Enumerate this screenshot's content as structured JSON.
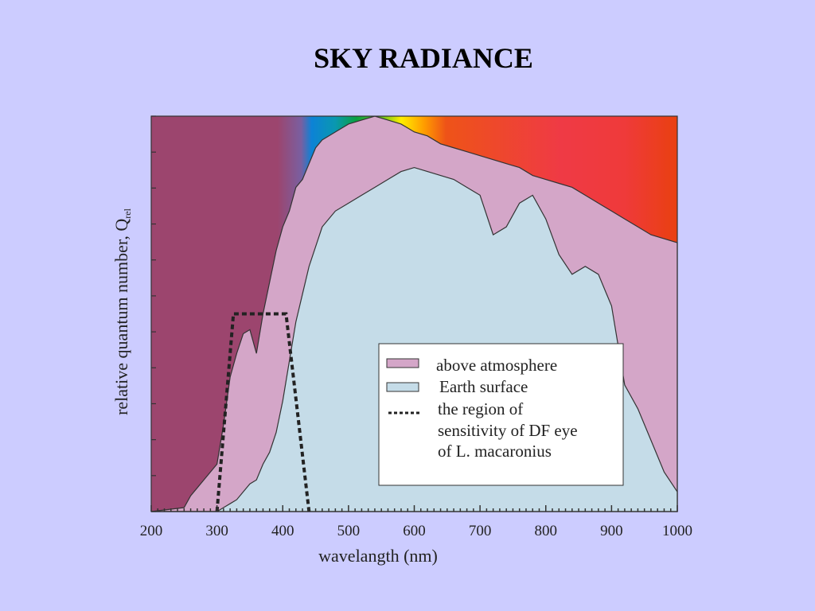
{
  "chart_data": {
    "type": "area",
    "title": "SKY RADIANCE",
    "xlabel": "wavelangth (nm)",
    "ylabel": "relative quantum number, Q",
    "ylabel_sub": "rel",
    "xlim": [
      200,
      1000
    ],
    "ylim": [
      0,
      1
    ],
    "x_ticks": [
      200,
      300,
      400,
      500,
      600,
      700,
      800,
      900,
      1000
    ],
    "grid": false,
    "legend_position": "lower-right",
    "spectrum_background": true,
    "series": [
      {
        "name": "above atmosphere",
        "color": "#d4a6c8",
        "x": [
          200,
          250,
          260,
          270,
          280,
          300,
          310,
          320,
          330,
          340,
          350,
          360,
          370,
          380,
          390,
          400,
          410,
          420,
          430,
          440,
          450,
          460,
          470,
          480,
          500,
          520,
          540,
          560,
          580,
          600,
          620,
          640,
          660,
          680,
          700,
          720,
          740,
          760,
          780,
          800,
          820,
          840,
          860,
          880,
          900,
          920,
          940,
          960,
          980,
          1000
        ],
        "y": [
          0.0,
          0.01,
          0.04,
          0.06,
          0.08,
          0.12,
          0.22,
          0.34,
          0.4,
          0.45,
          0.46,
          0.4,
          0.5,
          0.58,
          0.66,
          0.72,
          0.76,
          0.82,
          0.84,
          0.88,
          0.92,
          0.94,
          0.95,
          0.96,
          0.98,
          0.99,
          1.0,
          0.99,
          0.98,
          0.96,
          0.95,
          0.93,
          0.92,
          0.91,
          0.9,
          0.89,
          0.88,
          0.87,
          0.85,
          0.84,
          0.83,
          0.82,
          0.8,
          0.78,
          0.76,
          0.74,
          0.72,
          0.7,
          0.69,
          0.68
        ]
      },
      {
        "name": "Earth surface",
        "color": "#c5dce8",
        "x": [
          200,
          300,
          310,
          320,
          330,
          340,
          350,
          360,
          370,
          380,
          390,
          400,
          410,
          420,
          440,
          460,
          480,
          500,
          520,
          540,
          560,
          580,
          600,
          620,
          640,
          660,
          680,
          700,
          720,
          740,
          760,
          780,
          800,
          820,
          840,
          860,
          880,
          900,
          920,
          940,
          960,
          980,
          1000
        ],
        "y": [
          0.0,
          0.0,
          0.01,
          0.02,
          0.03,
          0.05,
          0.07,
          0.08,
          0.12,
          0.15,
          0.2,
          0.28,
          0.38,
          0.48,
          0.62,
          0.72,
          0.76,
          0.78,
          0.8,
          0.82,
          0.84,
          0.86,
          0.87,
          0.86,
          0.85,
          0.84,
          0.82,
          0.8,
          0.7,
          0.72,
          0.78,
          0.8,
          0.74,
          0.65,
          0.6,
          0.62,
          0.6,
          0.52,
          0.32,
          0.26,
          0.18,
          0.1,
          0.05
        ]
      },
      {
        "name": "the region of sensitivity of DF eye of L. macaronius",
        "style": "dashed",
        "x": [
          300,
          325,
          405,
          440
        ],
        "y": [
          0.0,
          0.5,
          0.5,
          0.0
        ]
      }
    ]
  },
  "legend": {
    "items": [
      {
        "label": "above atmosphere",
        "color": "#d4a6c8"
      },
      {
        "label": "Earth surface",
        "color": "#c5dce8"
      },
      {
        "label_lines": [
          "the region of",
          "sensitivity of DF eye",
          "of L. macaronius"
        ],
        "style": "dashed"
      }
    ]
  }
}
